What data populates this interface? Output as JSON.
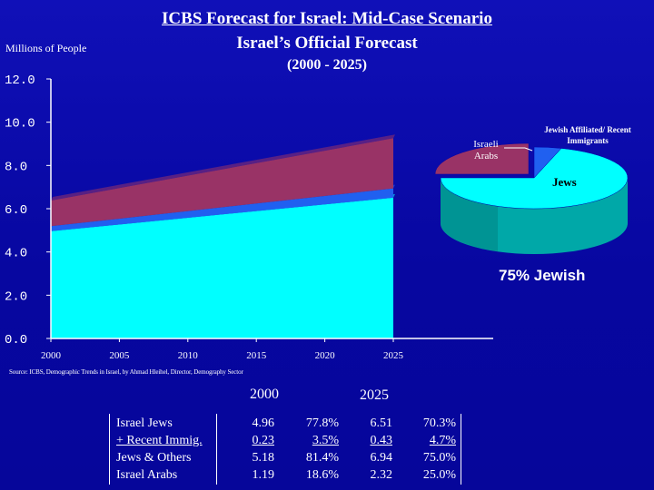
{
  "header": {
    "title": "ICBS Forecast for Israel:  Mid-Case Scenario",
    "subtitle": "Israel’s Official Forecast",
    "years": "(2000 - 2025)",
    "units": "Millions of People"
  },
  "source": "Source:  ICBS, Demographic Trends in Israel, by Ahmad Hleihel, Director, Demography Sector",
  "chart_data": [
    {
      "type": "area",
      "stacked": true,
      "x": [
        2000,
        2025
      ],
      "xlim": [
        2000,
        2025
      ],
      "ylim": [
        0,
        12
      ],
      "y_ticks": [
        "12.0",
        "10.0",
        "8.0",
        "6.0",
        "4.0",
        "2.0",
        "0.0"
      ],
      "x_ticks": [
        "2000",
        "2005",
        "2010",
        "2015",
        "2020",
        "2025"
      ],
      "ylabel": "Millions of People",
      "grid": false,
      "series": [
        {
          "values": [
            4.96,
            6.51
          ],
          "color": "#00ffff"
        },
        {
          "values": [
            0.23,
            0.43
          ],
          "color": "#2060f0"
        },
        {
          "values": [
            1.19,
            2.32
          ],
          "color": "#993366"
        }
      ]
    },
    {
      "type": "pie",
      "labels": [
        "Jews",
        "Jewish Affiliated/ Recent Immigrants",
        "Israeli Arabs"
      ],
      "values": [
        70.3,
        4.7,
        25.0
      ],
      "colors": [
        "#00ffff",
        "#2060f0",
        "#993366"
      ],
      "caption": "75% Jewish",
      "style": "3d"
    },
    {
      "type": "table",
      "headers": [
        "2000",
        "2025"
      ],
      "rows": [
        "Israel Jews",
        "+ Recent Immig.",
        "Jews & Others",
        "Israel Arabs"
      ],
      "columns": [
        [
          "4.96",
          "0.23",
          "5.18",
          "1.19"
        ],
        [
          "77.8%",
          "3.5%",
          "81.4%",
          "18.6%"
        ],
        [
          "6.51",
          "0.43",
          "6.94",
          "2.32"
        ],
        [
          "70.3%",
          "4.7%",
          "75.0%",
          "25.0%"
        ]
      ]
    }
  ]
}
